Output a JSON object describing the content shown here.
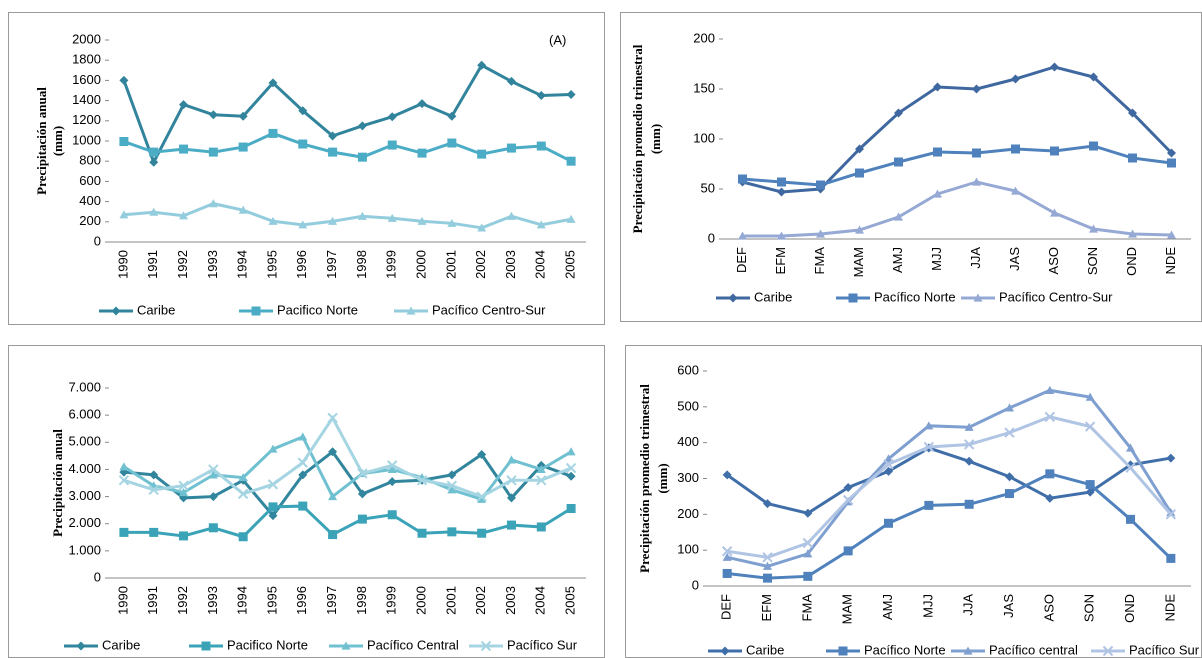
{
  "chart_data": [
    {
      "type": "line",
      "annotation": "(A)",
      "ylabel": [
        "Precipitación  anual",
        "(mm)"
      ],
      "categories": [
        "1990",
        "1991",
        "1992",
        "1993",
        "1994",
        "1995",
        "1996",
        "1997",
        "1998",
        "1999",
        "2000",
        "2001",
        "2002",
        "2003",
        "2004",
        "2005"
      ],
      "ylim": [
        0,
        2000
      ],
      "yticks": [
        0,
        200,
        400,
        600,
        800,
        1000,
        1200,
        1400,
        1600,
        1800,
        2000
      ],
      "series": [
        {
          "name": "Caribe",
          "color": "#31849b",
          "marker": "diamond",
          "values": [
            1600,
            790,
            1360,
            1260,
            1245,
            1575,
            1300,
            1050,
            1150,
            1240,
            1370,
            1245,
            1750,
            1590,
            1450,
            1460
          ]
        },
        {
          "name": "Pacifico Norte",
          "color": "#4bacc6",
          "marker": "square",
          "values": [
            995,
            890,
            920,
            890,
            940,
            1075,
            970,
            890,
            840,
            960,
            880,
            980,
            870,
            930,
            950,
            800
          ]
        },
        {
          "name": "Pacífico Centro-Sur",
          "color": "#93cddd",
          "marker": "triangle",
          "values": [
            270,
            295,
            260,
            380,
            315,
            205,
            170,
            205,
            255,
            235,
            205,
            185,
            140,
            255,
            170,
            225
          ]
        }
      ]
    },
    {
      "type": "line",
      "ylabel": [
        "Precipitación  promedio trimestral",
        "(mm)"
      ],
      "categories": [
        "DEF",
        "EFM",
        "FMA",
        "MAM",
        "AMJ",
        "MJJ",
        "JJA",
        "JAS",
        "ASO",
        "SON",
        "OND",
        "NDE"
      ],
      "ylim": [
        0,
        200
      ],
      "yticks": [
        0,
        50,
        100,
        150,
        200
      ],
      "series": [
        {
          "name": "Caribe",
          "color": "#4068a0",
          "marker": "diamond",
          "values": [
            57,
            47,
            50,
            90,
            126,
            152,
            150,
            160,
            172,
            162,
            126,
            86
          ]
        },
        {
          "name": "Pacífico Norte",
          "color": "#4f81bd",
          "marker": "square",
          "values": [
            60,
            57,
            54,
            66,
            77,
            87,
            86,
            90,
            88,
            93,
            81,
            76
          ]
        },
        {
          "name": "Pacífico Centro-Sur",
          "color": "#95a9d4",
          "marker": "triangle",
          "values": [
            3,
            3,
            5,
            9,
            22,
            45,
            57,
            48,
            26,
            10,
            5,
            4
          ]
        }
      ]
    },
    {
      "type": "line",
      "ylabel": [
        "Precipitación  anual"
      ],
      "categories": [
        "1990",
        "1991",
        "1992",
        "1993",
        "1994",
        "1995",
        "1996",
        "1997",
        "1998",
        "1999",
        "2000",
        "2001",
        "2002",
        "2003",
        "2004",
        "2005"
      ],
      "ylim": [
        0,
        7000
      ],
      "yticks": [
        0,
        {
          "value": 1000,
          "label": "1.000"
        },
        {
          "value": 2000,
          "label": "2.000"
        },
        {
          "value": 3000,
          "label": "3.000"
        },
        {
          "value": 4000,
          "label": "4.000"
        },
        {
          "value": 5000,
          "label": "5.000"
        },
        {
          "value": 6000,
          "label": "6.000"
        },
        {
          "value": 7000,
          "label": "7.000"
        }
      ],
      "series": [
        {
          "name": "Caribe",
          "color": "#31859c",
          "marker": "diamond",
          "values": [
            3900,
            3800,
            2950,
            3000,
            3600,
            2300,
            3800,
            4650,
            3100,
            3550,
            3600,
            3800,
            4550,
            2950,
            4150,
            3750
          ]
        },
        {
          "name": "Pacifico Norte",
          "color": "#3ba3b8",
          "marker": "square",
          "values": [
            1680,
            1680,
            1550,
            1850,
            1520,
            2620,
            2650,
            1600,
            2170,
            2330,
            1650,
            1700,
            1650,
            1950,
            1880,
            2560
          ]
        },
        {
          "name": "Pacífico Central",
          "color": "#6fc0d0",
          "marker": "triangle",
          "values": [
            4100,
            3400,
            3150,
            3800,
            3700,
            4750,
            5200,
            3000,
            3850,
            4000,
            3700,
            3250,
            2900,
            4350,
            4000,
            4650
          ]
        },
        {
          "name": "Pacífico Sur",
          "color": "#a5d5e2",
          "marker": "x",
          "values": [
            3600,
            3250,
            3400,
            4000,
            3100,
            3450,
            4250,
            5900,
            3850,
            4150,
            3600,
            3400,
            3000,
            3600,
            3600,
            4050
          ]
        }
      ]
    },
    {
      "type": "line",
      "ylabel": [
        "Precipitación  promedio trimestral",
        "(mm)"
      ],
      "categories": [
        "DEF",
        "EFM",
        "FMA",
        "MAM",
        "AMJ",
        "MJJ",
        "JJA",
        "JAS",
        "ASO",
        "SON",
        "OND",
        "NDE"
      ],
      "ylim": [
        0,
        600
      ],
      "yticks": [
        0,
        100,
        200,
        300,
        400,
        500,
        600
      ],
      "series": [
        {
          "name": "Caribe",
          "color": "#3f6ea8",
          "marker": "diamond",
          "values": [
            310,
            230,
            203,
            275,
            320,
            385,
            348,
            305,
            245,
            262,
            338,
            357
          ]
        },
        {
          "name": "Pacífico Norte",
          "color": "#4f81bd",
          "marker": "square",
          "values": [
            35,
            22,
            27,
            98,
            175,
            225,
            228,
            258,
            313,
            283,
            186,
            77
          ]
        },
        {
          "name": "Pacífico central",
          "color": "#7e9fd0",
          "marker": "triangle",
          "values": [
            80,
            55,
            90,
            235,
            355,
            447,
            443,
            497,
            546,
            527,
            385,
            205
          ]
        },
        {
          "name": "Pacífico Sur",
          "color": "#b0c4e4",
          "marker": "x",
          "values": [
            97,
            80,
            120,
            240,
            340,
            388,
            395,
            428,
            472,
            445,
            330,
            200
          ]
        }
      ]
    }
  ]
}
